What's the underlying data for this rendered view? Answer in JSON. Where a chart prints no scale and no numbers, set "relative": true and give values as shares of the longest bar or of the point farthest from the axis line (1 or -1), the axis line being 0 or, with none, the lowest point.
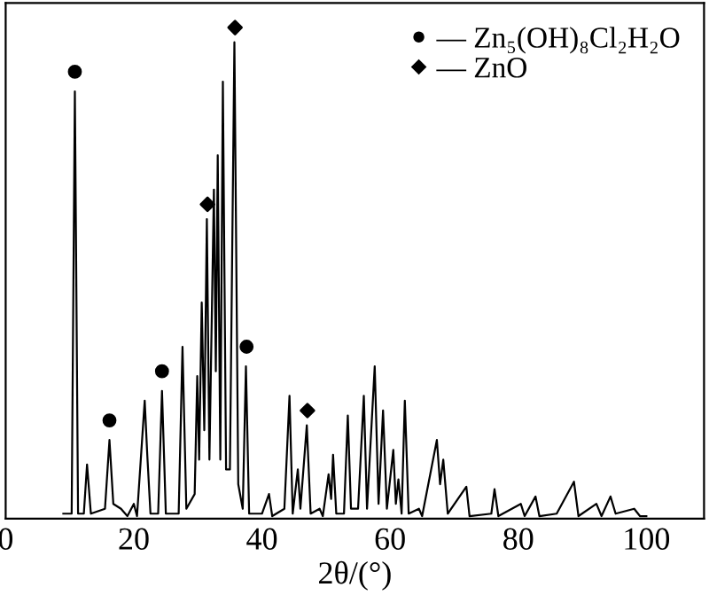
{
  "chart_data": {
    "type": "line",
    "relative": true,
    "xlabel": "2θ/(°)",
    "xlim": [
      0,
      109
    ],
    "xticks": [
      0,
      20,
      40,
      60,
      80,
      100
    ],
    "legend": "top right",
    "grid": false,
    "series": [
      {
        "color": "#000000",
        "marker": "none",
        "x": [
          9,
          10.3,
          10.8,
          11.3,
          12.2,
          12.7,
          13.3,
          15.5,
          16.2,
          16.8,
          18,
          19,
          20,
          20.5,
          21.7,
          22.1,
          22.6,
          23.8,
          24.4,
          25,
          27,
          27.6,
          28.2,
          29.5,
          29.9,
          30.2,
          30.6,
          31.0,
          31.4,
          31.8,
          32.5,
          32.8,
          33.1,
          33.5,
          33.9,
          34.4,
          35.0,
          35.7,
          36.3,
          37.0,
          37.5,
          38.0,
          40,
          41.1,
          41.6,
          43.5,
          44.3,
          44.8,
          45.6,
          46.0,
          47.0,
          47.6,
          49,
          49.5,
          50.4,
          50.8,
          51.1,
          51.6,
          52.8,
          53.4,
          53.9,
          55.0,
          55.9,
          56.4,
          57.6,
          58.2,
          58.9,
          59.5,
          60.5,
          60.9,
          61.3,
          61.8,
          62.3,
          62.9,
          64.5,
          65,
          67.3,
          67.8,
          68.3,
          69,
          71.9,
          72.4,
          75.8,
          76.3,
          76.9,
          80.4,
          81,
          82.7,
          83.3,
          86,
          88.7,
          89.4,
          92.2,
          93,
          94.4,
          95.2,
          98.1,
          99,
          100
        ],
        "values": [
          0.01,
          0.01,
          0.87,
          0.01,
          0.01,
          0.11,
          0.01,
          0.02,
          0.16,
          0.03,
          0.02,
          0.005,
          0.03,
          0.005,
          0.24,
          0.13,
          0.01,
          0.01,
          0.26,
          0.01,
          0.01,
          0.35,
          0.02,
          0.05,
          0.29,
          0.12,
          0.44,
          0.18,
          0.61,
          0.12,
          0.67,
          0.3,
          0.74,
          0.12,
          0.89,
          0.1,
          0.1,
          0.97,
          0.07,
          0.02,
          0.31,
          0.01,
          0.01,
          0.05,
          0.005,
          0.02,
          0.25,
          0.01,
          0.1,
          0.02,
          0.19,
          0.01,
          0.02,
          0.005,
          0.09,
          0.04,
          0.13,
          0.01,
          0.01,
          0.21,
          0.02,
          0.02,
          0.25,
          0.02,
          0.31,
          0.03,
          0.22,
          0.02,
          0.14,
          0.03,
          0.08,
          0.01,
          0.24,
          0.01,
          0.02,
          0.005,
          0.16,
          0.07,
          0.12,
          0.01,
          0.065,
          0.005,
          0.01,
          0.06,
          0.005,
          0.03,
          0.005,
          0.045,
          0.005,
          0.01,
          0.075,
          0.005,
          0.03,
          0.005,
          0.045,
          0.01,
          0.02,
          0.005,
          0.005
        ]
      },
      {
        "type": "scatter",
        "name": "— Zn₅(OH)₈Cl₂H₂O",
        "color": "#000000",
        "marker": "circle",
        "x": [
          10.8,
          16.2,
          24.4,
          37.6
        ],
        "values": [
          0.91,
          0.2,
          0.3,
          0.35
        ]
      },
      {
        "type": "scatter",
        "name": "— ZnO",
        "color": "#000000",
        "marker": "diamond",
        "x": [
          31.5,
          35.8,
          47.1
        ],
        "values": [
          0.64,
          1.0,
          0.22
        ]
      }
    ]
  }
}
